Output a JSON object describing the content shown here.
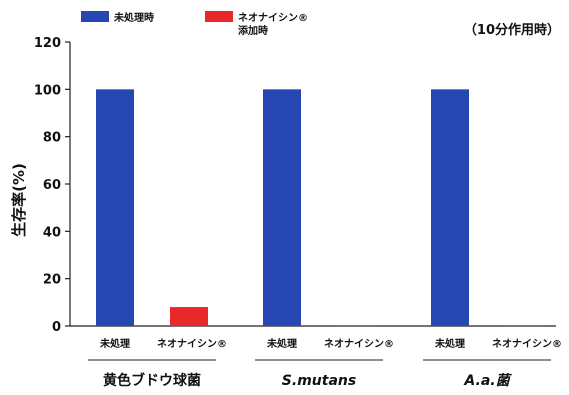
{
  "chart_data": {
    "type": "bar",
    "note": "（10分作用時）",
    "ylabel": "生存率(%)",
    "ylim": [
      0,
      120
    ],
    "yticks": [
      0,
      20,
      40,
      60,
      80,
      100,
      120
    ],
    "grid": false,
    "legend_position": "top-left",
    "legend": [
      {
        "label": "未処理時",
        "color": "#2747b3"
      },
      {
        "label_line1": "ネオナイシン®",
        "label_line2": "添加時",
        "color": "#e8282a"
      }
    ],
    "groups": [
      {
        "label": "黄色ブドウ球菌",
        "italic": false,
        "bars": [
          {
            "label": "未処理",
            "value": 100,
            "color": "#2747b3"
          },
          {
            "label": "ネオナイシン®",
            "value": 8,
            "color": "#e8282a"
          }
        ]
      },
      {
        "label": "S.mutans",
        "italic": true,
        "bars": [
          {
            "label": "未処理",
            "value": 100,
            "color": "#2747b3"
          },
          {
            "label": "ネオナイシン®",
            "value": 0.3,
            "color": "#e8282a"
          }
        ]
      },
      {
        "label": "A.a.菌",
        "italic": true,
        "bars": [
          {
            "label": "未処理",
            "value": 100,
            "color": "#2747b3"
          },
          {
            "label": "ネオナイシン®",
            "value": 0.3,
            "color": "#e8282a"
          }
        ]
      }
    ]
  }
}
